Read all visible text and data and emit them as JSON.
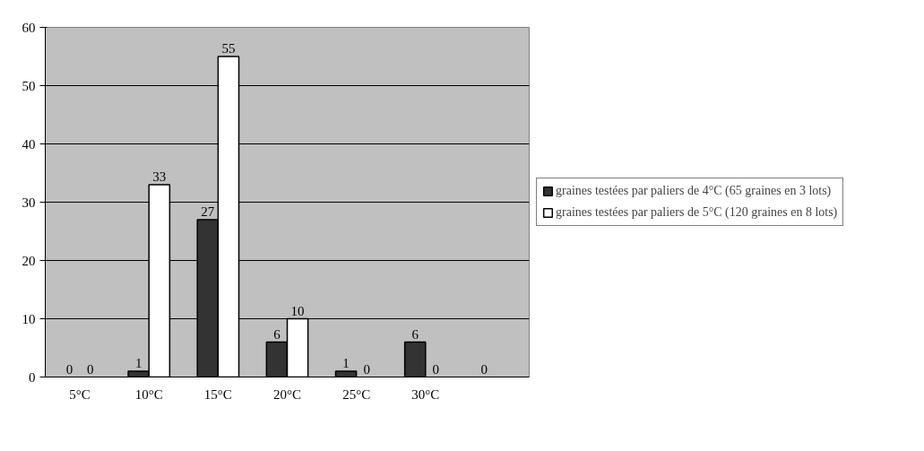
{
  "chart_data": {
    "type": "bar",
    "categories": [
      "5°C",
      "10°C",
      "15°C",
      "20°C",
      "25°C",
      "30°C",
      null
    ],
    "series": [
      {
        "name": "graines testées par paliers de 4°C (65 graines en 3 lots)",
        "color": "#333333",
        "values": [
          0,
          1,
          27,
          6,
          1,
          6,
          0
        ]
      },
      {
        "name": "graines testées par paliers de 5°C (120 graines en 8 lots)",
        "color": "#ffffff",
        "values": [
          0,
          33,
          55,
          10,
          0,
          0,
          null
        ]
      }
    ],
    "ylim": [
      0,
      60
    ],
    "yticks": [
      0,
      10,
      20,
      30,
      40,
      50,
      60
    ],
    "grid": "y",
    "legend": "right",
    "data_labels": true
  }
}
